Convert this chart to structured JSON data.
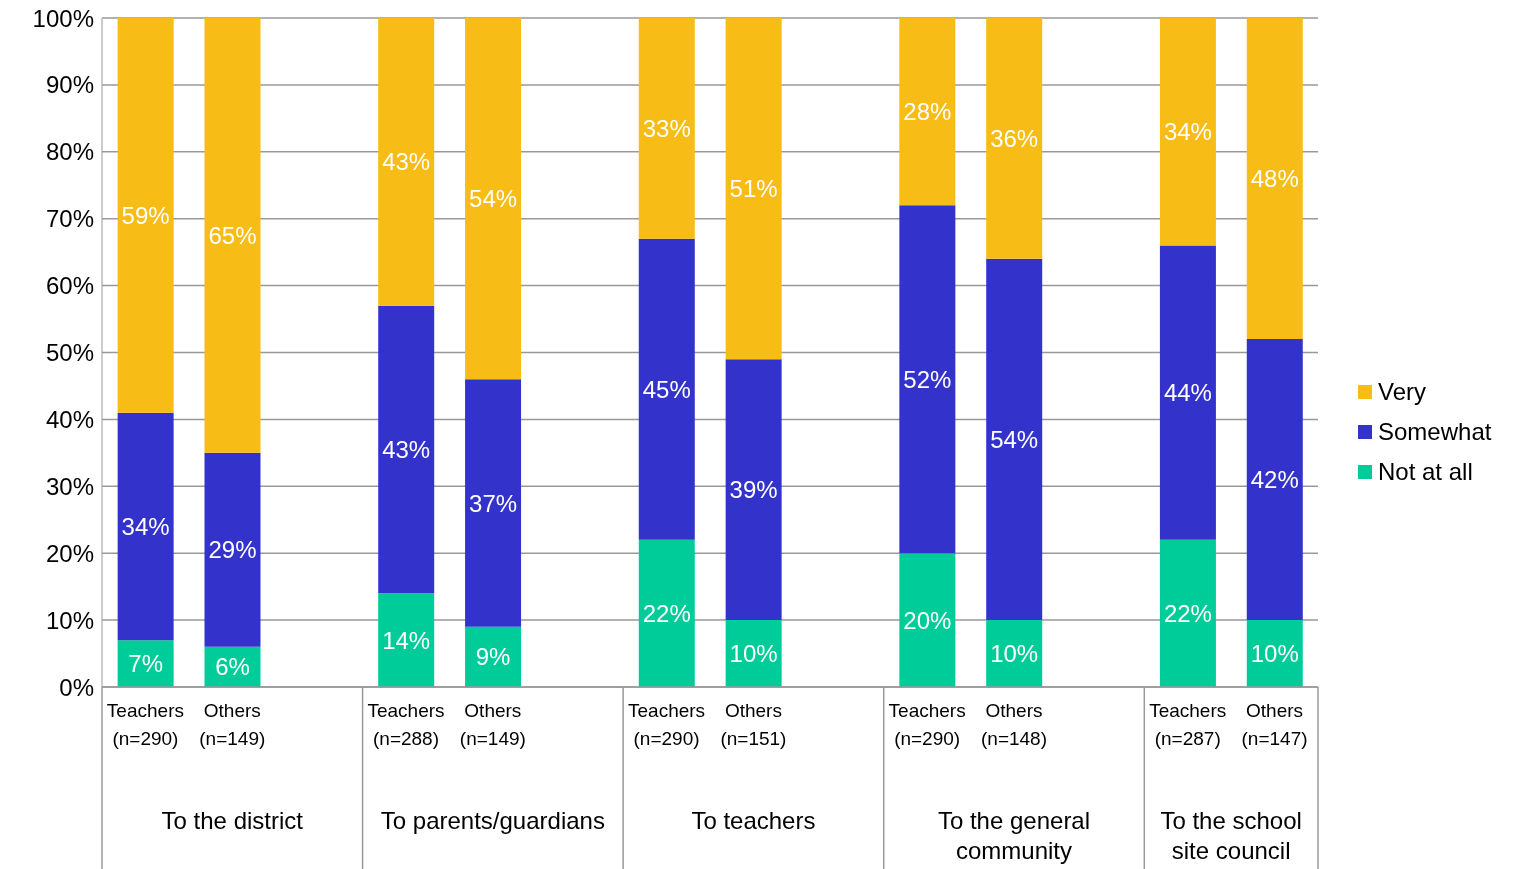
{
  "chart_data": {
    "type": "bar",
    "stacked": true,
    "categories": [
      "Teachers (n=290)",
      "Others (n=149)",
      null,
      "Teachers (n=288)",
      "Others (n=149)",
      null,
      "Teachers (n=290)",
      "Others (n=151)",
      null,
      "Teachers (n=290)",
      "Others (n=148)",
      null,
      "Teachers (n=287)",
      "Others (n=147)"
    ],
    "series": [
      {
        "name": "Not at all",
        "color": "#00cc99",
        "values": [
          7,
          6,
          null,
          14,
          9,
          null,
          22,
          10,
          null,
          20,
          10,
          null,
          22,
          10
        ],
        "value_labels": [
          "7%",
          "6%",
          null,
          "14%",
          "9%",
          null,
          "22%",
          "10%",
          null,
          "20%",
          "10%",
          null,
          "22%",
          "10%"
        ]
      },
      {
        "name": "Somewhat",
        "color": "#3333cc",
        "values": [
          34,
          29,
          null,
          43,
          37,
          null,
          45,
          39,
          null,
          52,
          54,
          null,
          44,
          42
        ],
        "value_labels": [
          "34%",
          "29%",
          null,
          "43%",
          "37%",
          null,
          "45%",
          "39%",
          null,
          "52%",
          "54%",
          null,
          "44%",
          "42%"
        ]
      },
      {
        "name": "Very",
        "color": "#f8bc16",
        "values": [
          59,
          65,
          null,
          43,
          54,
          null,
          33,
          51,
          null,
          28,
          36,
          null,
          34,
          48
        ],
        "value_labels": [
          "59%",
          "65%",
          null,
          "43%",
          "54%",
          null,
          "33%",
          "51%",
          null,
          "28%",
          "36%",
          null,
          "34%",
          "48%"
        ]
      }
    ],
    "ylim": [
      0,
      100
    ],
    "yticks": [
      {
        "value": 0,
        "label": "0%"
      },
      {
        "value": 10,
        "label": "10%"
      },
      {
        "value": 20,
        "label": "20%"
      },
      {
        "value": 30,
        "label": "30%"
      },
      {
        "value": 40,
        "label": "40%"
      },
      {
        "value": 50,
        "label": "50%"
      },
      {
        "value": 60,
        "label": "60%"
      },
      {
        "value": 70,
        "label": "70%"
      },
      {
        "value": 80,
        "label": "80%"
      },
      {
        "value": 90,
        "label": "90%"
      },
      {
        "value": 100,
        "label": "100%"
      }
    ],
    "annotations": [
      "To the district",
      "To parents/guardians",
      "To teachers",
      "To the general community",
      "To the school site council"
    ],
    "grid": "y",
    "legend": "right"
  }
}
